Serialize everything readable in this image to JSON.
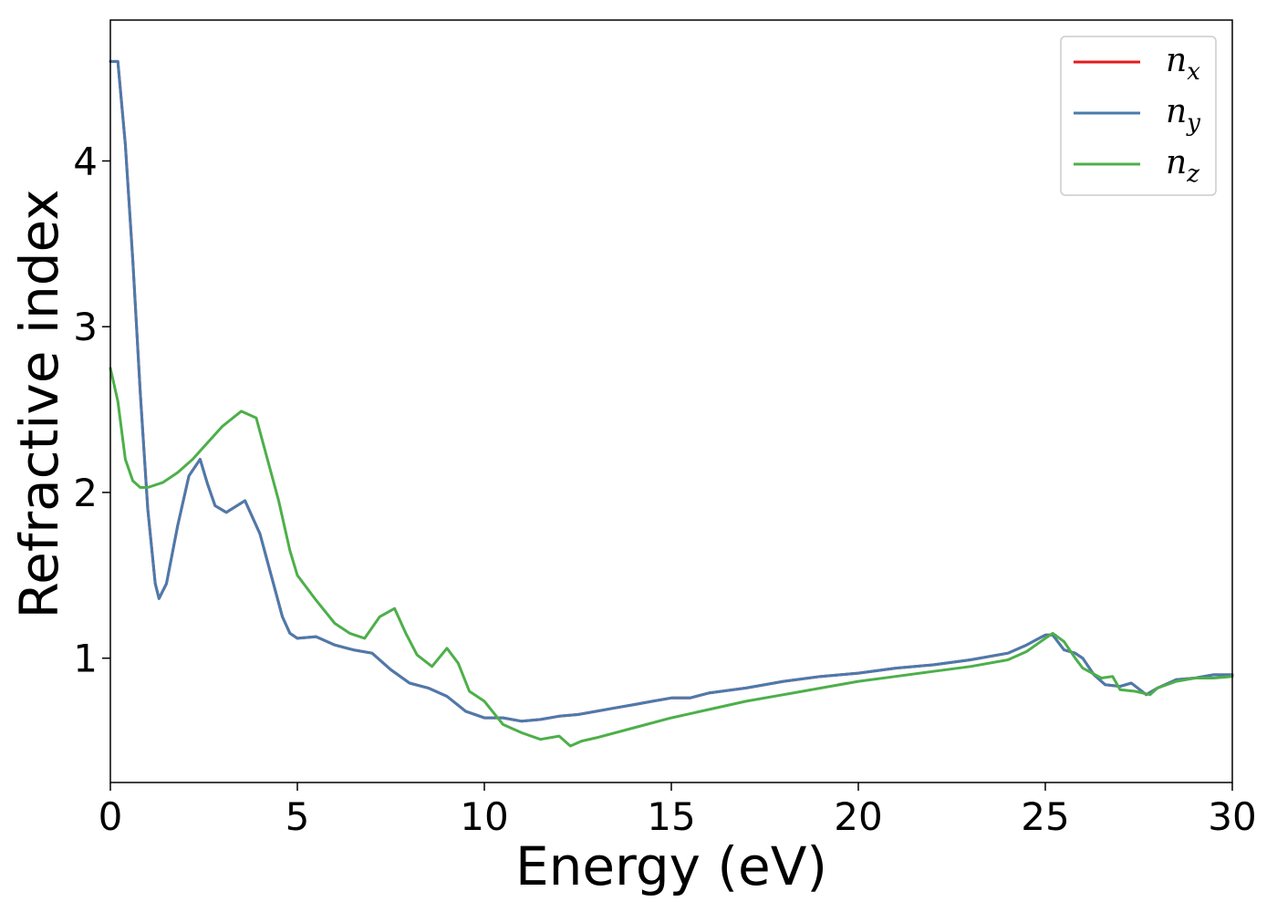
{
  "chart_data": {
    "type": "line",
    "title": "",
    "xlabel": "Energy (eV)",
    "ylabel": "Refractive index",
    "xlim": [
      0,
      30
    ],
    "ylim": [
      0.25,
      4.85
    ],
    "xticks": [
      0,
      5,
      10,
      15,
      20,
      25,
      30
    ],
    "xtick_labels": [
      "0",
      "5",
      "10",
      "15",
      "20",
      "25",
      "30"
    ],
    "yticks": [
      1,
      2,
      3,
      4
    ],
    "ytick_labels": [
      "1",
      "2",
      "3",
      "4"
    ],
    "grid": false,
    "legend_position": "top-right",
    "series": [
      {
        "name": "n_x",
        "label_base": "n",
        "label_sub": "x",
        "color": "#e41a1c",
        "x": [
          0,
          0.2,
          0.4,
          0.6,
          0.8,
          1.0,
          1.2,
          1.3,
          1.5,
          1.8,
          2.1,
          2.4,
          2.6,
          2.8,
          3.1,
          3.6,
          4.0,
          4.3,
          4.6,
          4.8,
          5.0,
          5.5,
          6.0,
          6.5,
          7.0,
          7.5,
          8.0,
          8.5,
          9.0,
          9.5,
          10.0,
          10.5,
          11.0,
          11.5,
          12.0,
          12.5,
          13.0,
          13.5,
          14.0,
          14.5,
          15.0,
          15.5,
          16.0,
          17.0,
          18.0,
          19.0,
          20.0,
          21.0,
          22.0,
          23.0,
          24.0,
          24.5,
          25.0,
          25.2,
          25.5,
          25.8,
          26.0,
          26.3,
          26.6,
          27.0,
          27.3,
          27.7,
          28.0,
          28.5,
          29.0,
          29.5,
          30.0
        ],
        "values": [
          4.6,
          4.6,
          4.1,
          3.4,
          2.6,
          1.9,
          1.45,
          1.36,
          1.45,
          1.8,
          2.1,
          2.2,
          2.05,
          1.92,
          1.88,
          1.95,
          1.75,
          1.5,
          1.25,
          1.15,
          1.12,
          1.13,
          1.08,
          1.05,
          1.03,
          0.93,
          0.85,
          0.82,
          0.77,
          0.68,
          0.64,
          0.64,
          0.62,
          0.63,
          0.65,
          0.66,
          0.68,
          0.7,
          0.72,
          0.74,
          0.76,
          0.76,
          0.79,
          0.82,
          0.86,
          0.89,
          0.91,
          0.94,
          0.96,
          0.99,
          1.03,
          1.08,
          1.14,
          1.14,
          1.05,
          1.03,
          1.0,
          0.9,
          0.84,
          0.83,
          0.85,
          0.78,
          0.82,
          0.87,
          0.88,
          0.9,
          0.9
        ]
      },
      {
        "name": "n_y",
        "label_base": "n",
        "label_sub": "y",
        "color": "#4a7bad",
        "x": [
          0,
          0.2,
          0.4,
          0.6,
          0.8,
          1.0,
          1.2,
          1.3,
          1.5,
          1.8,
          2.1,
          2.4,
          2.6,
          2.8,
          3.1,
          3.6,
          4.0,
          4.3,
          4.6,
          4.8,
          5.0,
          5.5,
          6.0,
          6.5,
          7.0,
          7.5,
          8.0,
          8.5,
          9.0,
          9.5,
          10.0,
          10.5,
          11.0,
          11.5,
          12.0,
          12.5,
          13.0,
          13.5,
          14.0,
          14.5,
          15.0,
          15.5,
          16.0,
          17.0,
          18.0,
          19.0,
          20.0,
          21.0,
          22.0,
          23.0,
          24.0,
          24.5,
          25.0,
          25.2,
          25.5,
          25.8,
          26.0,
          26.3,
          26.6,
          27.0,
          27.3,
          27.7,
          28.0,
          28.5,
          29.0,
          29.5,
          30.0
        ],
        "values": [
          4.6,
          4.6,
          4.1,
          3.4,
          2.6,
          1.9,
          1.45,
          1.36,
          1.45,
          1.8,
          2.1,
          2.2,
          2.05,
          1.92,
          1.88,
          1.95,
          1.75,
          1.5,
          1.25,
          1.15,
          1.12,
          1.13,
          1.08,
          1.05,
          1.03,
          0.93,
          0.85,
          0.82,
          0.77,
          0.68,
          0.64,
          0.64,
          0.62,
          0.63,
          0.65,
          0.66,
          0.68,
          0.7,
          0.72,
          0.74,
          0.76,
          0.76,
          0.79,
          0.82,
          0.86,
          0.89,
          0.91,
          0.94,
          0.96,
          0.99,
          1.03,
          1.08,
          1.14,
          1.14,
          1.05,
          1.03,
          1.0,
          0.9,
          0.84,
          0.83,
          0.85,
          0.78,
          0.82,
          0.87,
          0.88,
          0.9,
          0.9
        ]
      },
      {
        "name": "n_z",
        "label_base": "n",
        "label_sub": "z",
        "color": "#4daf4a",
        "x": [
          0,
          0.2,
          0.4,
          0.6,
          0.8,
          1.0,
          1.4,
          1.8,
          2.2,
          2.6,
          3.0,
          3.5,
          3.9,
          4.2,
          4.5,
          4.8,
          5.0,
          5.5,
          6.0,
          6.4,
          6.8,
          7.2,
          7.6,
          7.9,
          8.2,
          8.6,
          9.0,
          9.3,
          9.6,
          10.0,
          10.5,
          11.0,
          11.5,
          12.0,
          12.3,
          12.6,
          13.0,
          14.0,
          15.0,
          16.0,
          17.0,
          18.0,
          19.0,
          20.0,
          21.0,
          22.0,
          23.0,
          24.0,
          24.5,
          25.0,
          25.2,
          25.5,
          25.8,
          26.0,
          26.5,
          26.8,
          27.0,
          27.4,
          27.8,
          28.0,
          28.5,
          29.0,
          29.5,
          30.0
        ],
        "values": [
          2.75,
          2.55,
          2.2,
          2.07,
          2.03,
          2.03,
          2.06,
          2.12,
          2.2,
          2.3,
          2.4,
          2.49,
          2.45,
          2.2,
          1.95,
          1.65,
          1.5,
          1.35,
          1.21,
          1.15,
          1.12,
          1.25,
          1.3,
          1.15,
          1.02,
          0.95,
          1.06,
          0.97,
          0.8,
          0.74,
          0.6,
          0.55,
          0.51,
          0.53,
          0.47,
          0.5,
          0.52,
          0.58,
          0.64,
          0.69,
          0.74,
          0.78,
          0.82,
          0.86,
          0.89,
          0.92,
          0.95,
          0.99,
          1.04,
          1.12,
          1.15,
          1.1,
          1.0,
          0.94,
          0.88,
          0.89,
          0.81,
          0.8,
          0.78,
          0.82,
          0.86,
          0.88,
          0.88,
          0.89
        ]
      }
    ]
  }
}
